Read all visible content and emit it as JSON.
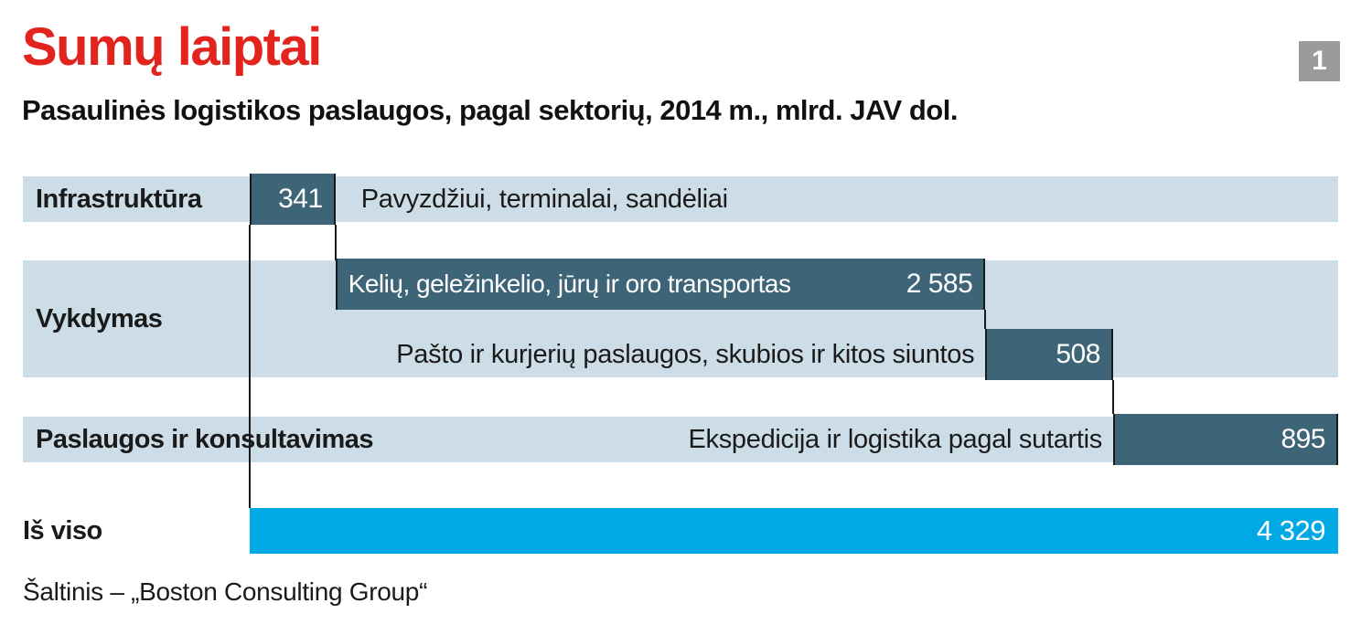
{
  "header": {
    "title": "Sumų laiptai",
    "badge": "1",
    "subtitle": "Pasaulinės logistikos paslaugos, pagal sektorių, 2014 m., mlrd. JAV dol."
  },
  "colors": {
    "accent_red": "#e3231e",
    "bar_dark": "#3e6478",
    "band_light": "#ccdde8",
    "total_cyan": "#00a9e4",
    "badge_gray": "#9b9b9b",
    "connector_black": "#1a1a1a"
  },
  "chart_data": {
    "type": "bar",
    "subtype": "waterfall",
    "orientation": "horizontal",
    "title": "Sumų laiptai",
    "subtitle": "Pasaulinės logistikos paslaugos, pagal sektorių, 2014 m., mlrd. JAV dol.",
    "unit": "mlrd. JAV dol.",
    "year": "2014 m.",
    "total": 4329,
    "rows": [
      {
        "group": "Infrastruktūra",
        "items": [
          {
            "label": "Pavyzdžiui, terminalai, sandėliai",
            "label_position": "right-of-bar",
            "value": 341,
            "value_text": "341"
          }
        ]
      },
      {
        "group": "Vykdymas",
        "items": [
          {
            "label": "Kelių, geležinkelio, jūrų ir oro transportas",
            "label_position": "inside-bar",
            "value": 2585,
            "value_text": "2 585"
          },
          {
            "label": "Pašto ir kurjerių paslaugos, skubios ir kitos siuntos",
            "label_position": "left-of-bar",
            "value": 508,
            "value_text": "508"
          }
        ]
      },
      {
        "group": "Paslaugos ir konsultavimas",
        "items": [
          {
            "label": "Ekspedicija ir logistika pagal sutartis",
            "label_position": "left-of-bar",
            "value": 895,
            "value_text": "895"
          }
        ]
      },
      {
        "group": "Iš viso",
        "items": [
          {
            "label": "",
            "value": 4329,
            "value_text": "4 329",
            "is_total": true
          }
        ]
      }
    ]
  },
  "footer": {
    "source": "Šaltinis – „Boston Consulting Group“"
  }
}
